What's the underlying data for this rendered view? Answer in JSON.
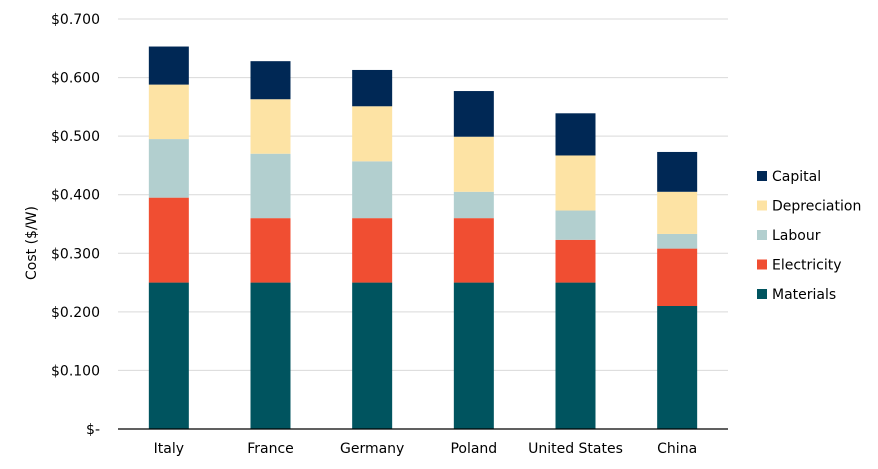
{
  "chart_data": {
    "type": "bar",
    "stacked": true,
    "title": "",
    "xlabel": "",
    "ylabel": "Cost ($/W)",
    "ylim": [
      0,
      0.7
    ],
    "y_ticks": [
      0,
      0.1,
      0.2,
      0.3,
      0.4,
      0.5,
      0.6,
      0.7
    ],
    "y_tick_labels": [
      "$-",
      "$0.100",
      "$0.200",
      "$0.300",
      "$0.400",
      "$0.500",
      "$0.600",
      "$0.700"
    ],
    "grid": true,
    "legend_position": "right",
    "categories": [
      "Italy",
      "France",
      "Germany",
      "Poland",
      "United States",
      "China"
    ],
    "series": [
      {
        "name": "Materials",
        "color": "#00545f",
        "values": [
          0.25,
          0.25,
          0.25,
          0.25,
          0.25,
          0.21
        ]
      },
      {
        "name": "Electricity",
        "color": "#f04e32",
        "values": [
          0.145,
          0.11,
          0.11,
          0.11,
          0.073,
          0.098
        ]
      },
      {
        "name": "Labour",
        "color": "#b2cfcf",
        "values": [
          0.1,
          0.11,
          0.097,
          0.045,
          0.05,
          0.025
        ]
      },
      {
        "name": "Depreciation",
        "color": "#fde3a4",
        "values": [
          0.093,
          0.093,
          0.094,
          0.094,
          0.094,
          0.072
        ]
      },
      {
        "name": "Capital",
        "color": "#002855",
        "values": [
          0.065,
          0.065,
          0.062,
          0.078,
          0.072,
          0.068
        ]
      }
    ],
    "legend_order": [
      "Capital",
      "Depreciation",
      "Labour",
      "Electricity",
      "Materials"
    ]
  }
}
